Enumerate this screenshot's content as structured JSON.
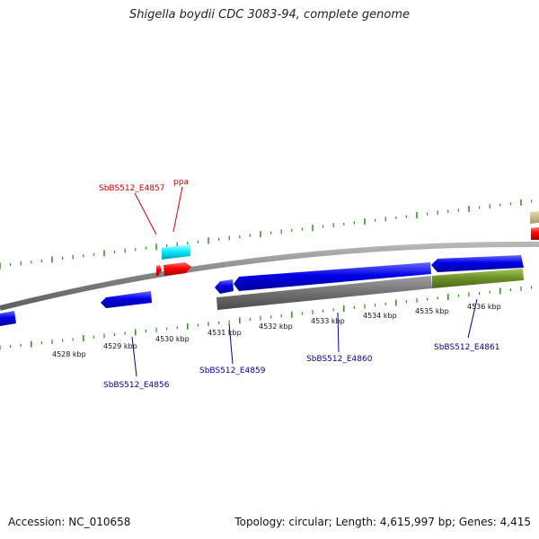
{
  "title": "Shigella boydii CDC 3083-94, complete genome",
  "footer": {
    "accession": "Accession: NC_010658",
    "summary": "Topology: circular; Length: 4,615,997 bp; Genes: 4,415"
  },
  "colors": {
    "backbone": "#8a8a8a",
    "tick": "#2e8b22",
    "forward_gene": "#ff0000",
    "reverse_gene": "#0000e0",
    "cyan_feature": "#00e5ff",
    "gray_feature": "#6e6e6e",
    "olive_feature": "#6b8e23",
    "tan_feature": "#c8b98a",
    "forward_label": "#cc0000",
    "reverse_label": "#000099"
  },
  "scale_labels": [
    "4528 kbp",
    "4529 kbp",
    "4530 kbp",
    "4531 kbp",
    "4532 kbp",
    "4533 kbp",
    "4534 kbp",
    "4535 kbp",
    "4536 kbp"
  ],
  "gene_labels": [
    {
      "text": "SbBS512_E4857",
      "strand": "forward"
    },
    {
      "text": "ppa",
      "strand": "forward"
    },
    {
      "text": "SbBS512_E4856",
      "strand": "reverse"
    },
    {
      "text": "SbBS512_E4859",
      "strand": "reverse"
    },
    {
      "text": "SbBS512_E4860",
      "strand": "reverse"
    },
    {
      "text": "SbBS512_E4861",
      "strand": "reverse"
    }
  ]
}
